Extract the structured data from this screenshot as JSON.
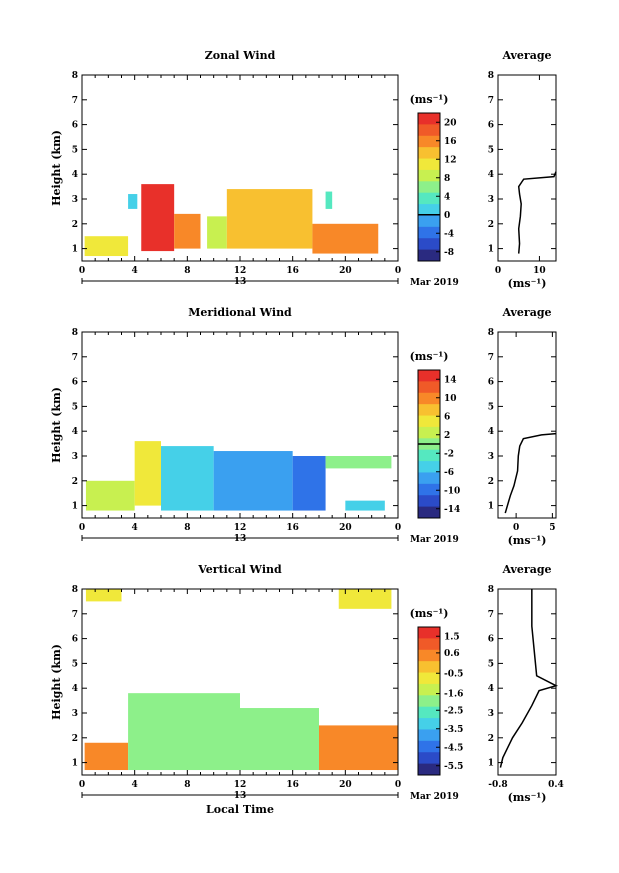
{
  "chart_data": [
    {
      "type": "heatmap",
      "title": "Zonal Wind",
      "xlabel": "",
      "ylabel": "Height (km)",
      "xlim": [
        0,
        24
      ],
      "ylim": [
        0.5,
        8
      ],
      "x_ticks": [
        "0",
        "4",
        "8",
        "12",
        "16",
        "20",
        "0"
      ],
      "y_ticks": [
        "1",
        "2",
        "3",
        "4",
        "5",
        "6",
        "7",
        "8"
      ],
      "date_day": "13",
      "date_label": "Mar 2019",
      "colorbar": {
        "unit": "(ms⁻¹)",
        "ticks": [
          "20",
          "16",
          "12",
          "8",
          "4",
          "0",
          "-4",
          "-8"
        ],
        "range": [
          -10,
          22
        ],
        "zero_contour": 0
      },
      "regions": [
        {
          "x0": 0.2,
          "x1": 3.5,
          "y0": 0.7,
          "y1": 1.5,
          "value": 12
        },
        {
          "x0": 3.5,
          "x1": 4.2,
          "y0": 2.6,
          "y1": 3.2,
          "value": 0
        },
        {
          "x0": 4.5,
          "x1": 7.0,
          "y0": 0.9,
          "y1": 3.6,
          "value": 20
        },
        {
          "x0": 7.0,
          "x1": 9.0,
          "y0": 1.0,
          "y1": 2.4,
          "value": 16
        },
        {
          "x0": 9.5,
          "x1": 11.0,
          "y0": 1.0,
          "y1": 2.3,
          "value": 8
        },
        {
          "x0": 11.0,
          "x1": 17.5,
          "y0": 1.0,
          "y1": 3.4,
          "value": 13
        },
        {
          "x0": 17.5,
          "x1": 22.5,
          "y0": 0.8,
          "y1": 2.0,
          "value": 15
        },
        {
          "x0": 18.5,
          "x1": 19.0,
          "y0": 2.6,
          "y1": 3.3,
          "value": 4
        }
      ]
    },
    {
      "type": "line",
      "title": "Average",
      "xlabel": "(ms⁻¹)",
      "xlim": [
        0,
        14
      ],
      "ylim": [
        0.5,
        8
      ],
      "x_ticks": [
        "0",
        "10"
      ],
      "y_ticks": [
        "1",
        "2",
        "3",
        "4",
        "5",
        "6",
        "7",
        "8"
      ],
      "x": [
        5.0,
        5.2,
        5.0,
        5.4,
        5.6,
        5.2,
        5.0,
        5.8,
        6.2,
        13.5,
        14
      ],
      "y": [
        0.8,
        1.2,
        1.8,
        2.3,
        2.8,
        3.2,
        3.5,
        3.7,
        3.8,
        3.9,
        4.1
      ]
    },
    {
      "type": "heatmap",
      "title": "Meridional Wind",
      "xlabel": "",
      "ylabel": "Height (km)",
      "xlim": [
        0,
        24
      ],
      "ylim": [
        0.5,
        8
      ],
      "x_ticks": [
        "0",
        "4",
        "8",
        "12",
        "16",
        "20",
        "0"
      ],
      "y_ticks": [
        "1",
        "2",
        "3",
        "4",
        "5",
        "6",
        "7",
        "8"
      ],
      "date_day": "13",
      "date_label": "Mar 2019",
      "colorbar": {
        "unit": "(ms⁻¹)",
        "ticks": [
          "14",
          "10",
          "6",
          "2",
          "-2",
          "-6",
          "-10",
          "-14"
        ],
        "range": [
          -16,
          16
        ],
        "zero_contour": 0
      },
      "regions": [
        {
          "x0": 0.3,
          "x1": 4.0,
          "y0": 0.8,
          "y1": 2.0,
          "value": 2
        },
        {
          "x0": 4.0,
          "x1": 6.0,
          "y0": 1.0,
          "y1": 3.6,
          "value": 4
        },
        {
          "x0": 6.0,
          "x1": 10.0,
          "y0": 0.8,
          "y1": 3.4,
          "value": -4
        },
        {
          "x0": 10.0,
          "x1": 16.0,
          "y0": 0.8,
          "y1": 3.2,
          "value": -7
        },
        {
          "x0": 16.0,
          "x1": 18.5,
          "y0": 0.8,
          "y1": 3.0,
          "value": -9
        },
        {
          "x0": 18.5,
          "x1": 23.5,
          "y0": 2.5,
          "y1": 3.0,
          "value": -1
        },
        {
          "x0": 20.0,
          "x1": 23.0,
          "y0": 0.8,
          "y1": 1.2,
          "value": -5
        }
      ]
    },
    {
      "type": "line",
      "title": "Average",
      "xlabel": "(ms⁻¹)",
      "xlim": [
        -2.5,
        5.5
      ],
      "ylim": [
        0.5,
        8
      ],
      "x_ticks": [
        "0",
        "5"
      ],
      "y_ticks": [
        "1",
        "2",
        "3",
        "4",
        "5",
        "6",
        "7",
        "8"
      ],
      "x": [
        -1.5,
        -1.2,
        -0.8,
        -0.3,
        0.2,
        0.3,
        0.5,
        1.0,
        3.5,
        5.5
      ],
      "y": [
        0.7,
        1.0,
        1.4,
        1.8,
        2.4,
        3.0,
        3.4,
        3.7,
        3.85,
        3.9
      ]
    },
    {
      "type": "heatmap",
      "title": "Vertical Wind",
      "xlabel": "Local Time",
      "ylabel": "Height (km)",
      "xlim": [
        0,
        24
      ],
      "ylim": [
        0.5,
        8
      ],
      "x_ticks": [
        "0",
        "4",
        "8",
        "12",
        "16",
        "20",
        "0"
      ],
      "y_ticks": [
        "1",
        "2",
        "3",
        "4",
        "5",
        "6",
        "7",
        "8"
      ],
      "date_day": "13",
      "date_label": "Mar 2019",
      "colorbar": {
        "unit": "(ms⁻¹)",
        "ticks": [
          "1.5",
          "0.6",
          "-0.5",
          "-1.6",
          "-2.5",
          "-3.5",
          "-4.5",
          "-5.5"
        ],
        "range": [
          -6,
          2
        ]
      },
      "regions": [
        {
          "x0": 0.2,
          "x1": 3.5,
          "y0": 0.7,
          "y1": 1.8,
          "value": 0.4
        },
        {
          "x0": 3.5,
          "x1": 12.0,
          "y0": 0.7,
          "y1": 3.8,
          "value": -2.3
        },
        {
          "x0": 12.0,
          "x1": 18.0,
          "y0": 0.7,
          "y1": 3.2,
          "value": -2.0
        },
        {
          "x0": 18.0,
          "x1": 24.0,
          "y0": 0.7,
          "y1": 2.5,
          "value": 0.2
        },
        {
          "x0": 0.3,
          "x1": 3.0,
          "y0": 7.5,
          "y1": 8.0,
          "value": -0.8
        },
        {
          "x0": 19.5,
          "x1": 23.5,
          "y0": 7.2,
          "y1": 8.0,
          "value": -0.8
        }
      ]
    },
    {
      "type": "line",
      "title": "Average",
      "xlabel": "(ms⁻¹)",
      "xlim": [
        -0.8,
        0.4
      ],
      "ylim": [
        0.5,
        8
      ],
      "x_ticks": [
        "-0.8",
        "0.4"
      ],
      "y_ticks": [
        "1",
        "2",
        "3",
        "4",
        "5",
        "6",
        "7",
        "8"
      ],
      "x": [
        -0.75,
        -0.7,
        -0.6,
        -0.5,
        -0.3,
        -0.1,
        0.05,
        0.4,
        0.0,
        -0.05,
        -0.1,
        -0.1
      ],
      "y": [
        0.8,
        1.2,
        1.6,
        2.0,
        2.6,
        3.3,
        3.9,
        4.1,
        4.5,
        5.5,
        6.5,
        8.0
      ]
    }
  ]
}
